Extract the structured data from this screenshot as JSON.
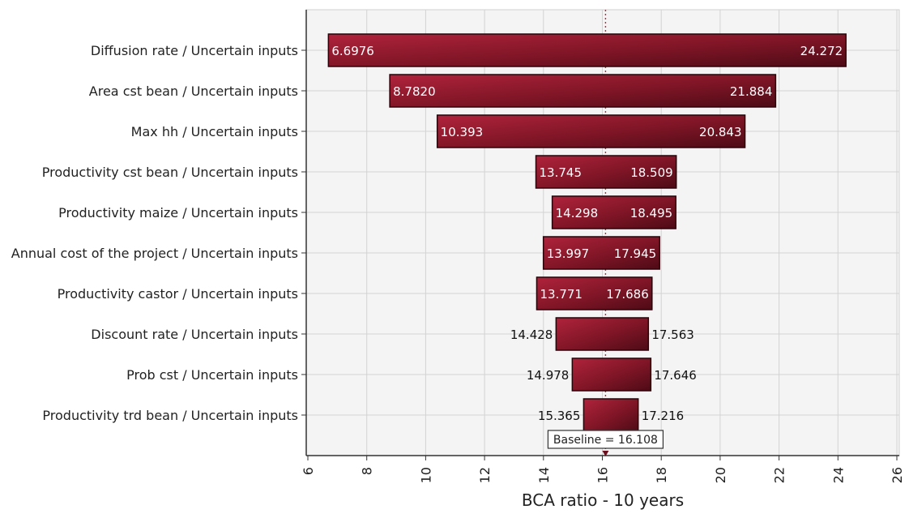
{
  "chart_data": {
    "type": "bar",
    "orientation": "horizontal",
    "subtype": "tornado",
    "xlabel": "BCA ratio - 10 years",
    "xlim": [
      6,
      26
    ],
    "xticks": [
      6,
      8,
      10,
      12,
      14,
      16,
      18,
      20,
      22,
      24,
      26
    ],
    "grid": true,
    "baseline": {
      "value": 16.108,
      "label": "Baseline = 16.108"
    },
    "bar_color": "#8b1a2c",
    "categories": [
      "Diffusion rate / Uncertain inputs",
      "Area cst bean / Uncertain inputs",
      "Max hh / Uncertain inputs",
      "Productivity cst bean / Uncertain inputs",
      "Productivity maize / Uncertain inputs",
      "Annual cost of the project / Uncertain inputs",
      "Productivity castor / Uncertain inputs",
      "Discount rate / Uncertain inputs",
      "Prob cst / Uncertain inputs",
      "Productivity trd bean / Uncertain inputs"
    ],
    "low": [
      6.6976,
      8.782,
      10.393,
      13.745,
      14.298,
      13.997,
      13.771,
      14.428,
      14.978,
      15.365
    ],
    "high": [
      24.272,
      21.884,
      20.843,
      18.509,
      18.495,
      17.945,
      17.686,
      17.563,
      17.646,
      17.216
    ],
    "low_labels": [
      "6.6976",
      "8.7820",
      "10.393",
      "13.745",
      "14.298",
      "13.997",
      "13.771",
      "14.428",
      "14.978",
      "15.365"
    ],
    "high_labels": [
      "24.272",
      "21.884",
      "20.843",
      "18.509",
      "18.495",
      "17.945",
      "17.686",
      "17.563",
      "17.646",
      "17.216"
    ],
    "labels_inside": [
      true,
      true,
      true,
      true,
      true,
      true,
      true,
      false,
      false,
      false
    ]
  }
}
